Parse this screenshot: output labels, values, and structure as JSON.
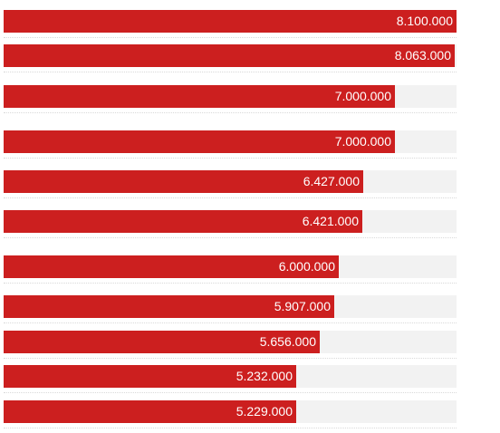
{
  "chart_data": {
    "type": "bar",
    "orientation": "horizontal",
    "values": [
      8100000,
      8063000,
      7000000,
      7000000,
      6427000,
      6421000,
      6000000,
      5907000,
      5656000,
      5232000,
      5229000
    ],
    "value_labels": [
      "8.100.000",
      "8.063.000",
      "7.000.000",
      "7.000.000",
      "6.427.000",
      "6.421.000",
      "6.000.000",
      "5.907.000",
      "5.656.000",
      "5.232.000",
      "5.229.000"
    ],
    "xlim": [
      0,
      8100000
    ],
    "grid": false,
    "bar_color": "#cc1f1f",
    "track_color": "#f2f2f2",
    "label_color": "#ffffff"
  }
}
